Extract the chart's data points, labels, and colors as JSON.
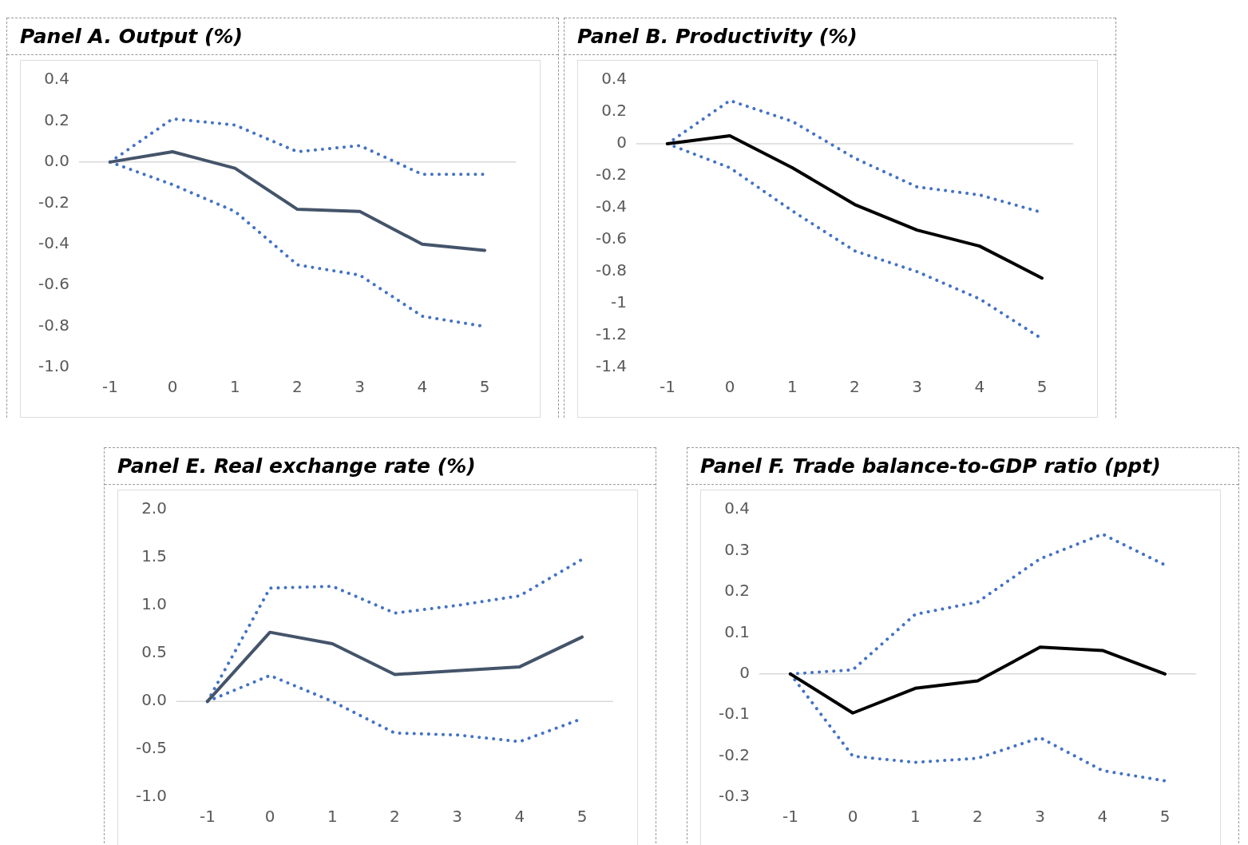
{
  "chart_data": [
    {
      "type": "line",
      "ref_lines": [
        {
          "axis": "y",
          "value": 0,
          "color": "#d9d9d9"
        }
      ],
      "title": "Panel A. Output (%)",
      "categories": [
        "-1",
        "0",
        "1",
        "2",
        "3",
        "4",
        "5"
      ],
      "ylim": [
        -1,
        0.4
      ],
      "yticks": [
        0.4,
        0.2,
        {
          "value": 0,
          "label": "0.0"
        },
        -0.2,
        -0.4,
        -0.6,
        -0.8,
        {
          "value": -1,
          "label": "-1.0"
        }
      ],
      "grid": false,
      "legend": false,
      "marker": "none",
      "series": [
        {
          "color": "#44546a",
          "line_style": "solid",
          "values": [
            0,
            0.05,
            -0.03,
            -0.23,
            -0.24,
            -0.4,
            -0.43
          ]
        },
        {
          "color": "#4472c4",
          "line_style": "dotted",
          "values": [
            0,
            0.21,
            0.18,
            0.05,
            0.08,
            -0.06,
            -0.06
          ]
        },
        {
          "color": "#4472c4",
          "line_style": "dotted",
          "values": [
            0,
            -0.11,
            -0.24,
            -0.5,
            -0.55,
            -0.75,
            -0.8
          ]
        }
      ]
    },
    {
      "type": "line",
      "ref_lines": [
        {
          "axis": "y",
          "value": 0,
          "color": "#d9d9d9"
        }
      ],
      "title": "Panel B. Productivity (%)",
      "categories": [
        "-1",
        "0",
        "1",
        "2",
        "3",
        "4",
        "5"
      ],
      "ylim": [
        -1.4,
        0.4
      ],
      "yticks": [
        0.4,
        0.2,
        0,
        -0.2,
        -0.4,
        -0.6,
        -0.8,
        -1,
        -1.2,
        -1.4
      ],
      "grid": false,
      "legend": false,
      "marker": "none",
      "series": [
        {
          "color": "#000000",
          "line_style": "solid",
          "values": [
            0,
            0.05,
            -0.15,
            -0.38,
            -0.54,
            -0.64,
            -0.84
          ]
        },
        {
          "color": "#4472c4",
          "line_style": "dotted",
          "values": [
            0,
            0.27,
            0.14,
            -0.09,
            -0.27,
            -0.32,
            -0.43
          ]
        },
        {
          "color": "#4472c4",
          "line_style": "dotted",
          "values": [
            0,
            -0.15,
            -0.42,
            -0.67,
            -0.8,
            -0.97,
            -1.22
          ]
        }
      ]
    },
    {
      "type": "line",
      "ref_lines": [
        {
          "axis": "y",
          "value": 0,
          "color": "#d9d9d9"
        }
      ],
      "title": "Panel E. Real exchange rate (%)",
      "categories": [
        "-1",
        "0",
        "1",
        "2",
        "3",
        "4",
        "5"
      ],
      "ylim": [
        -1,
        2
      ],
      "yticks": [
        {
          "value": 2,
          "label": "2.0"
        },
        1.5,
        {
          "value": 1,
          "label": "1.0"
        },
        0.5,
        {
          "value": 0,
          "label": "0.0"
        },
        -0.5,
        {
          "value": -1,
          "label": "-1.0"
        }
      ],
      "grid": false,
      "legend": false,
      "marker": "none",
      "series": [
        {
          "color": "#44546a",
          "line_style": "solid",
          "values": [
            0,
            0.72,
            0.6,
            0.28,
            0.32,
            0.36,
            0.67
          ]
        },
        {
          "color": "#4472c4",
          "line_style": "dotted",
          "values": [
            0,
            1.18,
            1.2,
            0.92,
            1.0,
            1.1,
            1.48
          ]
        },
        {
          "color": "#4472c4",
          "line_style": "dotted",
          "values": [
            0,
            0.27,
            0.0,
            -0.33,
            -0.35,
            -0.42,
            -0.18
          ]
        }
      ]
    },
    {
      "type": "line",
      "ref_lines": [
        {
          "axis": "y",
          "value": 0,
          "color": "#d9d9d9"
        }
      ],
      "title": "Panel F. Trade balance-to-GDP ratio (ppt)",
      "categories": [
        "-1",
        "0",
        "1",
        "2",
        "3",
        "4",
        "5"
      ],
      "ylim": [
        -0.3,
        0.4
      ],
      "yticks": [
        0.4,
        0.3,
        0.2,
        0.1,
        0,
        -0.1,
        -0.2,
        -0.3
      ],
      "grid": false,
      "legend": false,
      "marker": "none",
      "series": [
        {
          "color": "#000000",
          "line_style": "solid",
          "values": [
            0,
            -0.095,
            -0.035,
            -0.017,
            0.065,
            0.057,
            0
          ]
        },
        {
          "color": "#4472c4",
          "line_style": "dotted",
          "values": [
            0,
            0.01,
            0.145,
            0.175,
            0.28,
            0.34,
            0.265
          ]
        },
        {
          "color": "#4472c4",
          "line_style": "dotted",
          "values": [
            0,
            -0.2,
            -0.215,
            -0.205,
            -0.155,
            -0.235,
            -0.26
          ]
        }
      ]
    }
  ]
}
